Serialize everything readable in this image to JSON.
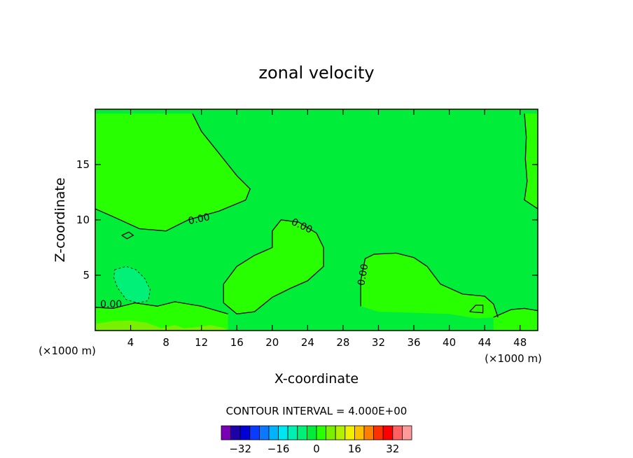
{
  "chart_data": {
    "type": "contour",
    "title": "zonal velocity",
    "xlabel": "X-coordinate",
    "ylabel": "Z-coordinate",
    "x_unit_label": "(×1000 m)",
    "y_unit_label": "(×1000 m)",
    "xlim": [
      0,
      50
    ],
    "ylim": [
      0,
      20
    ],
    "x_ticks": [
      4,
      8,
      12,
      16,
      20,
      24,
      28,
      32,
      36,
      40,
      44,
      48
    ],
    "y_ticks": [
      5,
      10,
      15
    ],
    "contour_interval_text": "CONTOUR INTERVAL = 4.000E+00",
    "contour_labels": [
      "0.00",
      "0.00",
      "0.00",
      "0.00"
    ],
    "background_level_color": "#00ee3a",
    "colorbar": {
      "colors": [
        "#7a00b8",
        "#1c00a8",
        "#0000d6",
        "#0a3cff",
        "#0a78ff",
        "#00b4ff",
        "#00e6f0",
        "#00f0b4",
        "#00f078",
        "#00ee3a",
        "#28ff00",
        "#78f000",
        "#b4f000",
        "#f0f000",
        "#ffc000",
        "#ff8000",
        "#ff3000",
        "#ff0000",
        "#ff6060",
        "#ff9a9a"
      ],
      "tick_values": [
        -32,
        -16,
        0,
        16,
        32
      ],
      "tick_labels": [
        "−32",
        "−16",
        "0",
        "16",
        "32"
      ],
      "vmin": -40,
      "vmax": 40
    },
    "regions": [
      {
        "name": "positive-upper-left",
        "color": "#28ff00",
        "points": [
          [
            0,
            19.6
          ],
          [
            11,
            19.6
          ],
          [
            12,
            18
          ],
          [
            14,
            16
          ],
          [
            16,
            14
          ],
          [
            17.5,
            12.8
          ],
          [
            17,
            11.8
          ],
          [
            14,
            10.8
          ],
          [
            10.5,
            10
          ],
          [
            8,
            9
          ],
          [
            5,
            9.2
          ],
          [
            2,
            10.3
          ],
          [
            0,
            11
          ]
        ]
      },
      {
        "name": "positive-center-lobe",
        "color": "#28ff00",
        "points": [
          [
            14.5,
            4.2
          ],
          [
            16,
            5.8
          ],
          [
            18,
            6.8
          ],
          [
            20,
            7.5
          ],
          [
            20,
            9
          ],
          [
            21,
            10
          ],
          [
            23,
            9.8
          ],
          [
            25,
            8.8
          ],
          [
            25.8,
            7.5
          ],
          [
            25.8,
            5.8
          ],
          [
            24,
            4.5
          ],
          [
            22,
            3.8
          ],
          [
            20,
            3
          ],
          [
            18,
            1.7
          ],
          [
            16,
            1.5
          ],
          [
            14.5,
            2.5
          ]
        ]
      },
      {
        "name": "positive-right-block",
        "color": "#28ff00",
        "points": [
          [
            30,
            2.2
          ],
          [
            30,
            4.5
          ],
          [
            30.5,
            6.5
          ],
          [
            31.5,
            6.9
          ],
          [
            34,
            7
          ],
          [
            36,
            6.6
          ],
          [
            37.5,
            5.8
          ],
          [
            39,
            4.2
          ],
          [
            41.5,
            3.3
          ],
          [
            44,
            3.1
          ],
          [
            45,
            2.4
          ],
          [
            45.5,
            1.2
          ],
          [
            43,
            1.1
          ],
          [
            40,
            1.5
          ],
          [
            36.5,
            1.6
          ],
          [
            32,
            1.7
          ]
        ]
      },
      {
        "name": "positive-right-edge",
        "color": "#28ff00",
        "points": [
          [
            48.5,
            19.6
          ],
          [
            50,
            19.6
          ],
          [
            50,
            11
          ],
          [
            48.5,
            11.8
          ],
          [
            48.8,
            13.5
          ],
          [
            48.6,
            15.5
          ],
          [
            48.7,
            17.5
          ]
        ]
      },
      {
        "name": "positive-bottom-left",
        "color": "#28ff00",
        "points": [
          [
            0,
            2.1
          ],
          [
            2,
            2
          ],
          [
            4.5,
            2.5
          ],
          [
            7,
            2.2
          ],
          [
            9,
            2.6
          ],
          [
            12,
            2.2
          ],
          [
            15,
            1.5
          ],
          [
            15,
            0
          ],
          [
            0,
            0
          ]
        ]
      },
      {
        "name": "positive-bottom-right",
        "color": "#28ff00",
        "points": [
          [
            45,
            1.2
          ],
          [
            47,
            1.9
          ],
          [
            48.5,
            2
          ],
          [
            50,
            1.8
          ],
          [
            50,
            0
          ],
          [
            45,
            0
          ]
        ]
      },
      {
        "name": "negative-left-patch",
        "color": "#00f078",
        "points": [
          [
            2.2,
            5.5
          ],
          [
            3.5,
            5.8
          ],
          [
            4.6,
            5.5
          ],
          [
            5.6,
            4.7
          ],
          [
            6.2,
            3.7
          ],
          [
            6,
            2.7
          ],
          [
            4.8,
            2.5
          ],
          [
            3.5,
            2.8
          ],
          [
            2.5,
            3.9
          ],
          [
            2.1,
            4.8
          ]
        ]
      },
      {
        "name": "strong-bottom-band",
        "color": "#78f000",
        "points": [
          [
            0,
            0.6
          ],
          [
            2,
            0.85
          ],
          [
            4,
            0.9
          ],
          [
            5.8,
            0.7
          ],
          [
            7.5,
            0.2
          ],
          [
            9,
            0.5
          ],
          [
            10,
            0.2
          ],
          [
            11.5,
            0.3
          ],
          [
            13,
            0.5
          ],
          [
            14.5,
            0.25
          ],
          [
            15,
            0
          ],
          [
            0,
            0
          ]
        ]
      }
    ],
    "contour_lines": [
      {
        "points": [
          [
            11,
            19.6
          ],
          [
            12,
            18
          ],
          [
            14,
            16
          ],
          [
            16,
            14
          ],
          [
            17.5,
            12.8
          ],
          [
            17,
            11.8
          ],
          [
            14,
            10.8
          ],
          [
            10.5,
            10
          ],
          [
            8,
            9
          ],
          [
            5,
            9.2
          ],
          [
            2,
            10.3
          ],
          [
            0,
            11
          ]
        ]
      },
      {
        "points": [
          [
            14.5,
            4.2
          ],
          [
            16,
            5.8
          ],
          [
            18,
            6.8
          ],
          [
            20,
            7.5
          ],
          [
            20,
            9
          ],
          [
            21,
            10
          ],
          [
            23,
            9.8
          ],
          [
            25,
            8.8
          ],
          [
            25.8,
            7.5
          ],
          [
            25.8,
            5.8
          ],
          [
            24,
            4.5
          ],
          [
            22,
            3.8
          ],
          [
            20,
            3
          ],
          [
            18,
            1.7
          ],
          [
            16,
            1.5
          ],
          [
            14.5,
            2.5
          ],
          [
            14.5,
            4.2
          ]
        ]
      },
      {
        "points": [
          [
            30,
            2.2
          ],
          [
            30,
            4.5
          ],
          [
            30.5,
            6.5
          ],
          [
            31.5,
            6.9
          ],
          [
            34,
            7
          ],
          [
            36,
            6.6
          ],
          [
            37.5,
            5.8
          ],
          [
            39,
            4.2
          ],
          [
            41.5,
            3.3
          ],
          [
            44,
            3.1
          ],
          [
            45,
            2.4
          ],
          [
            45.5,
            1.2
          ]
        ]
      },
      {
        "points": [
          [
            48.5,
            19.6
          ],
          [
            48.7,
            17.5
          ],
          [
            48.6,
            15.5
          ],
          [
            48.8,
            13.5
          ],
          [
            48.5,
            11.8
          ],
          [
            50,
            11
          ]
        ]
      },
      {
        "points": [
          [
            0,
            2.1
          ],
          [
            2,
            2
          ],
          [
            4.5,
            2.5
          ],
          [
            7,
            2.2
          ],
          [
            9,
            2.6
          ],
          [
            12,
            2.2
          ],
          [
            15,
            1.5
          ]
        ]
      },
      {
        "points": [
          [
            45,
            1.2
          ],
          [
            47,
            1.9
          ],
          [
            48.5,
            2
          ],
          [
            50,
            1.8
          ]
        ]
      },
      {
        "points": [
          [
            3,
            8.6
          ],
          [
            3.8,
            8.9
          ],
          [
            4.3,
            8.6
          ],
          [
            3.6,
            8.3
          ],
          [
            3,
            8.6
          ]
        ]
      },
      {
        "points": [
          [
            42.3,
            1.7
          ],
          [
            43,
            2.3
          ],
          [
            43.8,
            2.3
          ],
          [
            43.8,
            1.6
          ],
          [
            42.3,
            1.7
          ]
        ]
      }
    ],
    "dashed_contours": [
      {
        "points": [
          [
            2.2,
            5.5
          ],
          [
            3.5,
            5.8
          ],
          [
            4.6,
            5.5
          ],
          [
            5.6,
            4.7
          ],
          [
            6.2,
            3.7
          ],
          [
            6,
            2.7
          ],
          [
            4.8,
            2.5
          ],
          [
            3.5,
            2.8
          ],
          [
            2.5,
            3.9
          ],
          [
            2.1,
            4.8
          ],
          [
            2.2,
            5.5
          ]
        ]
      }
    ],
    "contour_label_positions": [
      {
        "text": "0.00",
        "x": 11.8,
        "y": 9.8,
        "rotate": -12
      },
      {
        "text": "0.00",
        "x": 23.2,
        "y": 9.2,
        "rotate": 25
      },
      {
        "text": "0.00",
        "x": 30.6,
        "y": 5.0,
        "rotate": -80
      },
      {
        "text": "0.00",
        "x": 1.8,
        "y": 2.1,
        "rotate": 0
      }
    ]
  }
}
